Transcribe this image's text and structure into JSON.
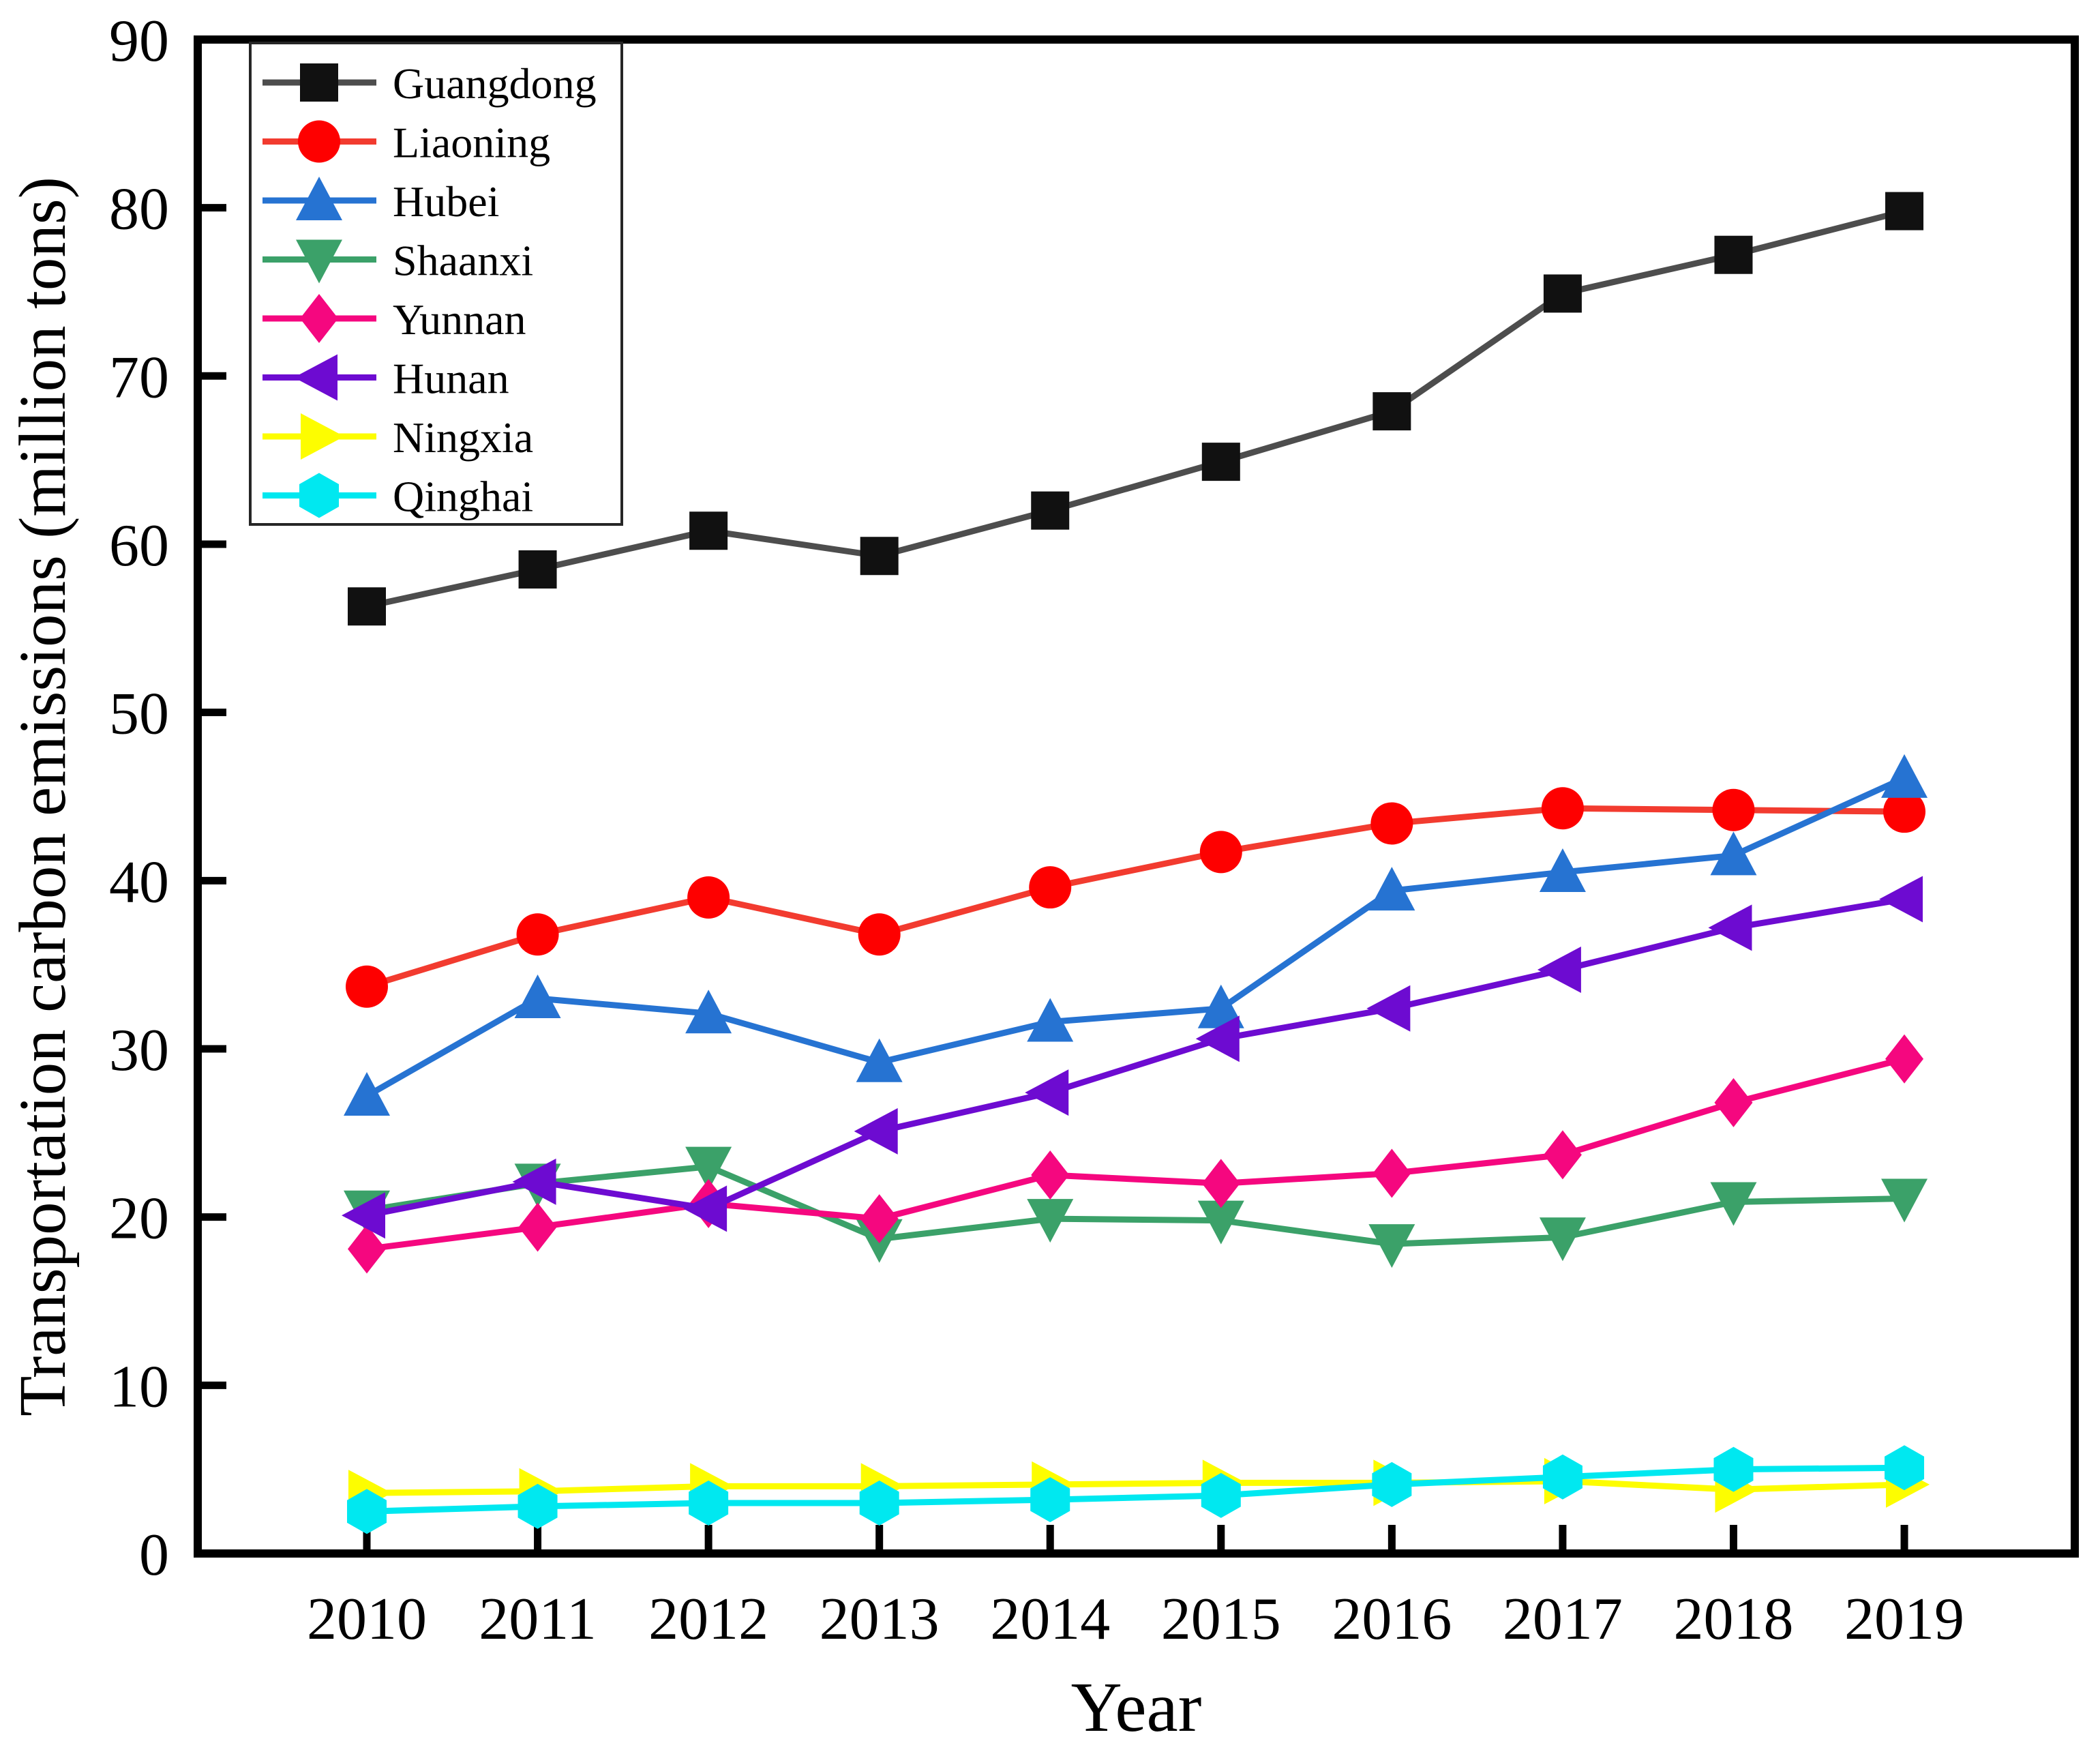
{
  "chart_data": {
    "type": "line",
    "title": "",
    "xlabel": "Year",
    "ylabel": "Transportation carbon emissions (million tons)",
    "x": [
      2010,
      2011,
      2012,
      2013,
      2014,
      2015,
      2016,
      2017,
      2018,
      2019
    ],
    "xtick_labels": [
      "2010",
      "2011",
      "2012",
      "2013",
      "2014",
      "2015",
      "2016",
      "2017",
      "2018",
      "2019"
    ],
    "yticks": [
      0,
      10,
      20,
      30,
      40,
      50,
      60,
      70,
      80,
      90
    ],
    "ylim": [
      0,
      90
    ],
    "grid": false,
    "legend_position": "upper-left",
    "axis_color": "#000000",
    "series": [
      {
        "name": "Guangdong",
        "marker": "square",
        "marker_color": "#111111",
        "line_color": "#4d4d4d",
        "values": [
          56.3,
          58.5,
          60.8,
          59.3,
          62.0,
          64.9,
          67.9,
          74.9,
          77.2,
          79.8
        ]
      },
      {
        "name": "Liaoning",
        "marker": "circle",
        "marker_color": "#fe0000",
        "line_color": "#f23b2f",
        "values": [
          33.7,
          36.8,
          39.0,
          36.8,
          39.6,
          41.7,
          43.4,
          44.3,
          44.2,
          44.1
        ]
      },
      {
        "name": "Hubei",
        "marker": "triangle-up",
        "marker_color": "#2673d2",
        "line_color": "#2673d2",
        "values": [
          27.2,
          33.0,
          32.1,
          29.2,
          31.6,
          32.4,
          39.4,
          40.5,
          41.5,
          46.1
        ]
      },
      {
        "name": "Shaanxi",
        "marker": "triangle-down",
        "marker_color": "#3ba169",
        "line_color": "#3ba169",
        "values": [
          20.4,
          22.0,
          23.0,
          18.7,
          19.9,
          19.8,
          18.4,
          18.8,
          20.9,
          21.1
        ]
      },
      {
        "name": "Yunnan",
        "marker": "diamond",
        "marker_color": "#f5077f",
        "line_color": "#f5077f",
        "values": [
          18.1,
          19.4,
          20.8,
          19.9,
          22.5,
          22.0,
          22.6,
          23.7,
          26.8,
          29.4
        ]
      },
      {
        "name": "Hunan",
        "marker": "triangle-left",
        "marker_color": "#6d0bd1",
        "line_color": "#6d0bd1",
        "values": [
          20.1,
          22.1,
          20.5,
          25.1,
          27.4,
          30.6,
          32.4,
          34.7,
          37.2,
          38.9
        ]
      },
      {
        "name": "Ningxia",
        "marker": "triangle-right",
        "marker_color": "#fdfd00",
        "line_color": "#fdfd00",
        "values": [
          3.6,
          3.7,
          4.0,
          4.0,
          4.1,
          4.2,
          4.2,
          4.3,
          3.8,
          4.1
        ]
      },
      {
        "name": "Qinghai",
        "marker": "hexagon",
        "marker_color": "#00e8f0",
        "line_color": "#00e8f0",
        "values": [
          2.5,
          2.8,
          3.0,
          3.0,
          3.2,
          3.45,
          4.1,
          4.55,
          5.0,
          5.1
        ]
      }
    ]
  }
}
